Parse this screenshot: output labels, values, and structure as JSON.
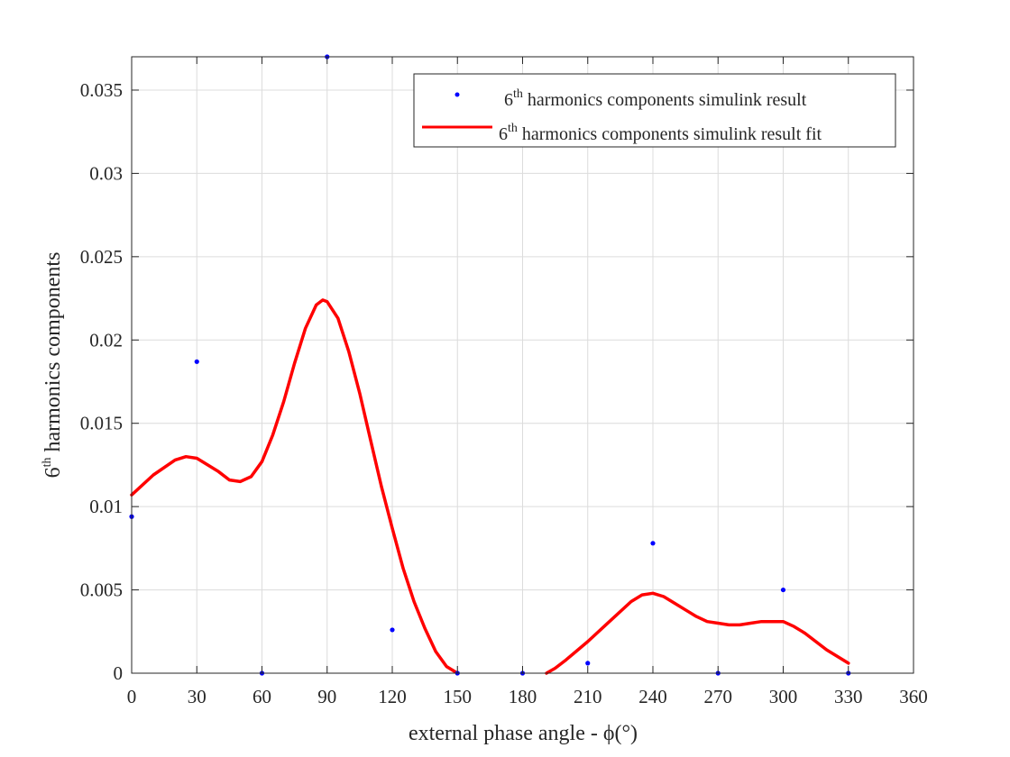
{
  "chart_data": {
    "type": "scatter",
    "xlabel": "external phase angle - ϕ(°)",
    "ylabel": {
      "prefix": "6",
      "sup": "th",
      "rest": " harmonics components"
    },
    "xlim": [
      0,
      360
    ],
    "ylim": [
      0,
      0.037
    ],
    "xticks": [
      0,
      30,
      60,
      90,
      120,
      150,
      180,
      210,
      240,
      270,
      300,
      330,
      360
    ],
    "yticks": [
      0,
      0.005,
      0.01,
      0.015,
      0.02,
      0.025,
      0.03,
      0.035
    ],
    "ytick_labels": [
      "0",
      "0.005",
      "0.01",
      "0.015",
      "0.02",
      "0.025",
      "0.03",
      "0.035"
    ],
    "grid": true,
    "legend_position": "top-right",
    "colors": {
      "points": "#0000ff",
      "fit": "#ff0000",
      "grid": "#dcdcdc",
      "axis": "#262626"
    },
    "series": [
      {
        "name": {
          "prefix": "6",
          "sup": "th",
          "rest": " harmonics components simulink result"
        },
        "style": "points",
        "x": [
          0,
          30,
          60,
          90,
          120,
          150,
          180,
          210,
          240,
          270,
          300,
          330
        ],
        "y": [
          0.0094,
          0.0187,
          0,
          0.037,
          0.0026,
          0,
          0,
          0.0006,
          0.0078,
          0,
          0.005,
          0
        ]
      },
      {
        "name": {
          "prefix": "6",
          "sup": "th",
          "rest": " harmonics components simulink result fit"
        },
        "style": "line",
        "x": [
          0,
          10,
          20,
          25,
          30,
          40,
          45,
          50,
          55,
          60,
          65,
          70,
          75,
          80,
          85,
          88,
          90,
          95,
          100,
          105,
          110,
          115,
          120,
          125,
          130,
          135,
          140,
          145,
          150,
          191,
          195,
          200,
          210,
          220,
          230,
          235,
          240,
          245,
          250,
          260,
          265,
          270,
          275,
          280,
          285,
          290,
          295,
          300,
          305,
          310,
          320,
          330
        ],
        "y": [
          0.0107,
          0.0119,
          0.0128,
          0.013,
          0.0129,
          0.0121,
          0.0116,
          0.0115,
          0.0118,
          0.0127,
          0.0143,
          0.0163,
          0.0186,
          0.0207,
          0.0221,
          0.0224,
          0.0223,
          0.0213,
          0.0193,
          0.0168,
          0.014,
          0.0112,
          0.0087,
          0.0063,
          0.0043,
          0.0027,
          0.0013,
          0.0004,
          0,
          0,
          0.0003,
          0.0008,
          0.0019,
          0.0031,
          0.0043,
          0.0047,
          0.0048,
          0.0046,
          0.0042,
          0.0034,
          0.0031,
          0.003,
          0.0029,
          0.0029,
          0.003,
          0.0031,
          0.0031,
          0.0031,
          0.0028,
          0.0024,
          0.0014,
          0.0006
        ]
      }
    ]
  }
}
